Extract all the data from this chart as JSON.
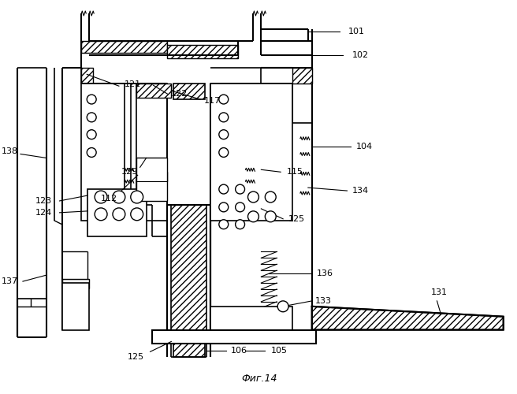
{
  "title": "Фиг.14",
  "bg_color": "#ffffff",
  "line_color": "#000000"
}
